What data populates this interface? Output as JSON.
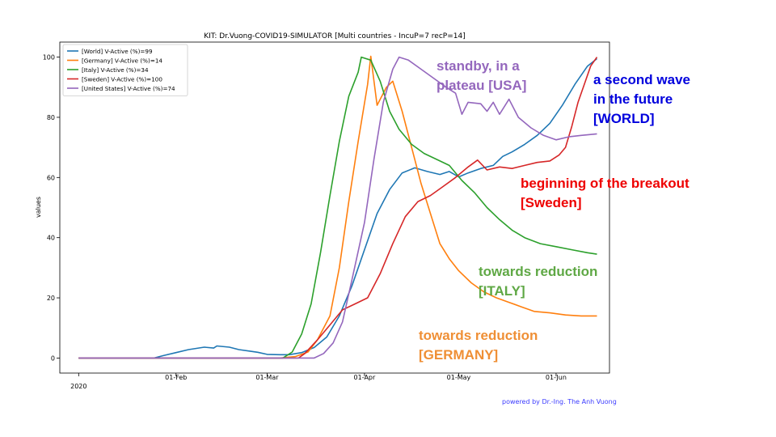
{
  "chart_data": {
    "type": "line",
    "title": "KIT: Dr.Vuong-COVID19-SIMULATOR [Multi countries - IncuP=7 recP=14]",
    "xlabel": "",
    "ylabel": "values",
    "x_ticks": [
      {
        "date": "2020-01-01",
        "label": "2020"
      },
      {
        "date": "2020-02-01",
        "label": "01-Feb"
      },
      {
        "date": "2020-03-01",
        "label": "01-Mar"
      },
      {
        "date": "2020-04-01",
        "label": "01-Apr"
      },
      {
        "date": "2020-05-01",
        "label": "01-May"
      },
      {
        "date": "2020-06-01",
        "label": "01-Jun"
      }
    ],
    "y_ticks": [
      0,
      20,
      40,
      60,
      80,
      100
    ],
    "xlim": [
      "2019-12-26",
      "2020-06-18"
    ],
    "ylim": [
      -5,
      105
    ],
    "grid": false,
    "legend_position": "top-left",
    "series": [
      {
        "name": "[World] V-Active (%)=99",
        "color": "#1f77b4",
        "points": [
          [
            "2020-01-01",
            0
          ],
          [
            "2020-01-25",
            0
          ],
          [
            "2020-01-28",
            0.8
          ],
          [
            "2020-02-01",
            1.8
          ],
          [
            "2020-02-05",
            2.8
          ],
          [
            "2020-02-10",
            3.6
          ],
          [
            "2020-02-13",
            3.3
          ],
          [
            "2020-02-14",
            4.0
          ],
          [
            "2020-02-18",
            3.6
          ],
          [
            "2020-02-21",
            2.8
          ],
          [
            "2020-02-25",
            2.2
          ],
          [
            "2020-02-27",
            1.9
          ],
          [
            "2020-03-01",
            1.2
          ],
          [
            "2020-03-05",
            1.1
          ],
          [
            "2020-03-08",
            1.1
          ],
          [
            "2020-03-12",
            1.8
          ],
          [
            "2020-03-16",
            3.5
          ],
          [
            "2020-03-20",
            7
          ],
          [
            "2020-03-24",
            14
          ],
          [
            "2020-03-28",
            24
          ],
          [
            "2020-04-01",
            36
          ],
          [
            "2020-04-05",
            48
          ],
          [
            "2020-04-09",
            56
          ],
          [
            "2020-04-13",
            61.5
          ],
          [
            "2020-04-17",
            63.2
          ],
          [
            "2020-04-21",
            62
          ],
          [
            "2020-04-25",
            61
          ],
          [
            "2020-04-28",
            62
          ],
          [
            "2020-05-01",
            60.2
          ],
          [
            "2020-05-04",
            61.5
          ],
          [
            "2020-05-08",
            63
          ],
          [
            "2020-05-12",
            64
          ],
          [
            "2020-05-15",
            67
          ],
          [
            "2020-05-18",
            68.5
          ],
          [
            "2020-05-22",
            71
          ],
          [
            "2020-05-26",
            74
          ],
          [
            "2020-05-30",
            78
          ],
          [
            "2020-06-03",
            84
          ],
          [
            "2020-06-07",
            91
          ],
          [
            "2020-06-11",
            97
          ],
          [
            "2020-06-14",
            99.5
          ]
        ]
      },
      {
        "name": "[Germany] V-Active (%)=14",
        "color": "#ff7f0e",
        "points": [
          [
            "2020-01-01",
            0
          ],
          [
            "2020-03-05",
            0
          ],
          [
            "2020-03-10",
            0.5
          ],
          [
            "2020-03-14",
            2
          ],
          [
            "2020-03-17",
            6
          ],
          [
            "2020-03-21",
            14
          ],
          [
            "2020-03-24",
            30
          ],
          [
            "2020-03-27",
            52
          ],
          [
            "2020-03-30",
            72
          ],
          [
            "2020-04-02",
            91
          ],
          [
            "2020-04-03",
            100.3
          ],
          [
            "2020-04-05",
            84
          ],
          [
            "2020-04-08",
            90
          ],
          [
            "2020-04-10",
            92
          ],
          [
            "2020-04-13",
            82
          ],
          [
            "2020-04-16",
            70
          ],
          [
            "2020-04-19",
            58
          ],
          [
            "2020-04-22",
            48
          ],
          [
            "2020-04-25",
            38
          ],
          [
            "2020-04-28",
            33
          ],
          [
            "2020-05-01",
            29
          ],
          [
            "2020-05-05",
            25
          ],
          [
            "2020-05-09",
            22
          ],
          [
            "2020-05-13",
            20
          ],
          [
            "2020-05-17",
            18.5
          ],
          [
            "2020-05-21",
            17
          ],
          [
            "2020-05-25",
            15.5
          ],
          [
            "2020-05-30",
            15
          ],
          [
            "2020-06-04",
            14.3
          ],
          [
            "2020-06-09",
            14
          ],
          [
            "2020-06-14",
            14
          ]
        ]
      },
      {
        "name": "[Italy] V-Active (%)=34",
        "color": "#2ca02c",
        "points": [
          [
            "2020-01-01",
            0
          ],
          [
            "2020-03-06",
            0
          ],
          [
            "2020-03-09",
            2
          ],
          [
            "2020-03-12",
            8
          ],
          [
            "2020-03-15",
            18
          ],
          [
            "2020-03-18",
            35
          ],
          [
            "2020-03-21",
            54
          ],
          [
            "2020-03-24",
            72
          ],
          [
            "2020-03-27",
            87
          ],
          [
            "2020-03-30",
            95
          ],
          [
            "2020-03-31",
            100
          ],
          [
            "2020-04-03",
            99
          ],
          [
            "2020-04-06",
            92
          ],
          [
            "2020-04-09",
            82
          ],
          [
            "2020-04-12",
            76
          ],
          [
            "2020-04-16",
            71
          ],
          [
            "2020-04-20",
            68
          ],
          [
            "2020-04-24",
            66
          ],
          [
            "2020-04-28",
            64
          ],
          [
            "2020-05-02",
            59
          ],
          [
            "2020-05-06",
            55
          ],
          [
            "2020-05-10",
            50
          ],
          [
            "2020-05-14",
            46
          ],
          [
            "2020-05-18",
            42.5
          ],
          [
            "2020-05-22",
            40
          ],
          [
            "2020-05-27",
            38
          ],
          [
            "2020-06-01",
            37
          ],
          [
            "2020-06-06",
            36
          ],
          [
            "2020-06-11",
            35
          ],
          [
            "2020-06-14",
            34.5
          ]
        ]
      },
      {
        "name": "[Sweden] V-Active (%)=100",
        "color": "#d62728",
        "points": [
          [
            "2020-01-01",
            0
          ],
          [
            "2020-03-11",
            0
          ],
          [
            "2020-03-13",
            1.5
          ],
          [
            "2020-03-17",
            6
          ],
          [
            "2020-03-21",
            11
          ],
          [
            "2020-03-25",
            16
          ],
          [
            "2020-03-29",
            18
          ],
          [
            "2020-04-02",
            20
          ],
          [
            "2020-04-06",
            28
          ],
          [
            "2020-04-10",
            38
          ],
          [
            "2020-04-14",
            47
          ],
          [
            "2020-04-18",
            52
          ],
          [
            "2020-04-22",
            54
          ],
          [
            "2020-04-26",
            57
          ],
          [
            "2020-04-30",
            60
          ],
          [
            "2020-05-04",
            63.5
          ],
          [
            "2020-05-07",
            65.8
          ],
          [
            "2020-05-10",
            62.5
          ],
          [
            "2020-05-14",
            63.5
          ],
          [
            "2020-05-18",
            63
          ],
          [
            "2020-05-22",
            64
          ],
          [
            "2020-05-26",
            65
          ],
          [
            "2020-05-30",
            65.5
          ],
          [
            "2020-06-02",
            67.5
          ],
          [
            "2020-06-04",
            70
          ],
          [
            "2020-06-06",
            77
          ],
          [
            "2020-06-08",
            85
          ],
          [
            "2020-06-10",
            91
          ],
          [
            "2020-06-12",
            97
          ],
          [
            "2020-06-14",
            100
          ]
        ]
      },
      {
        "name": "[United States] V-Active (%)=74",
        "color": "#9467bd",
        "points": [
          [
            "2020-01-01",
            0
          ],
          [
            "2020-03-16",
            0
          ],
          [
            "2020-03-19",
            1.5
          ],
          [
            "2020-03-22",
            5
          ],
          [
            "2020-03-25",
            12
          ],
          [
            "2020-03-28",
            26
          ],
          [
            "2020-04-01",
            45
          ],
          [
            "2020-04-04",
            66
          ],
          [
            "2020-04-07",
            85
          ],
          [
            "2020-04-10",
            96
          ],
          [
            "2020-04-12",
            100
          ],
          [
            "2020-04-15",
            99
          ],
          [
            "2020-04-19",
            96
          ],
          [
            "2020-04-23",
            93
          ],
          [
            "2020-04-27",
            90
          ],
          [
            "2020-04-30",
            88
          ],
          [
            "2020-05-02",
            81
          ],
          [
            "2020-05-04",
            85
          ],
          [
            "2020-05-08",
            84.5
          ],
          [
            "2020-05-10",
            82
          ],
          [
            "2020-05-12",
            85
          ],
          [
            "2020-05-14",
            81
          ],
          [
            "2020-05-17",
            86
          ],
          [
            "2020-05-20",
            80
          ],
          [
            "2020-05-24",
            76.5
          ],
          [
            "2020-05-28",
            74
          ],
          [
            "2020-06-01",
            72.5
          ],
          [
            "2020-06-05",
            73.5
          ],
          [
            "2020-06-09",
            74
          ],
          [
            "2020-06-14",
            74.5
          ]
        ]
      }
    ]
  },
  "annotations": [
    {
      "lines": [
        "standby, in a",
        "plateau [USA]"
      ],
      "color": "#9467bd"
    },
    {
      "lines": [
        "a second wave",
        "in the future",
        "[WORLD]"
      ],
      "color": "#0000dd"
    },
    {
      "lines": [
        "beginning of the breakout",
        "[Sweden]"
      ],
      "color": "#ee0000"
    },
    {
      "lines": [
        "towards reduction",
        "[ITALY]"
      ],
      "color": "#5fa845"
    },
    {
      "lines": [
        "towards reduction",
        "[GERMANY]"
      ],
      "color": "#ef8f35"
    }
  ],
  "credit": "powered by Dr.-Ing. The Anh Vuong"
}
